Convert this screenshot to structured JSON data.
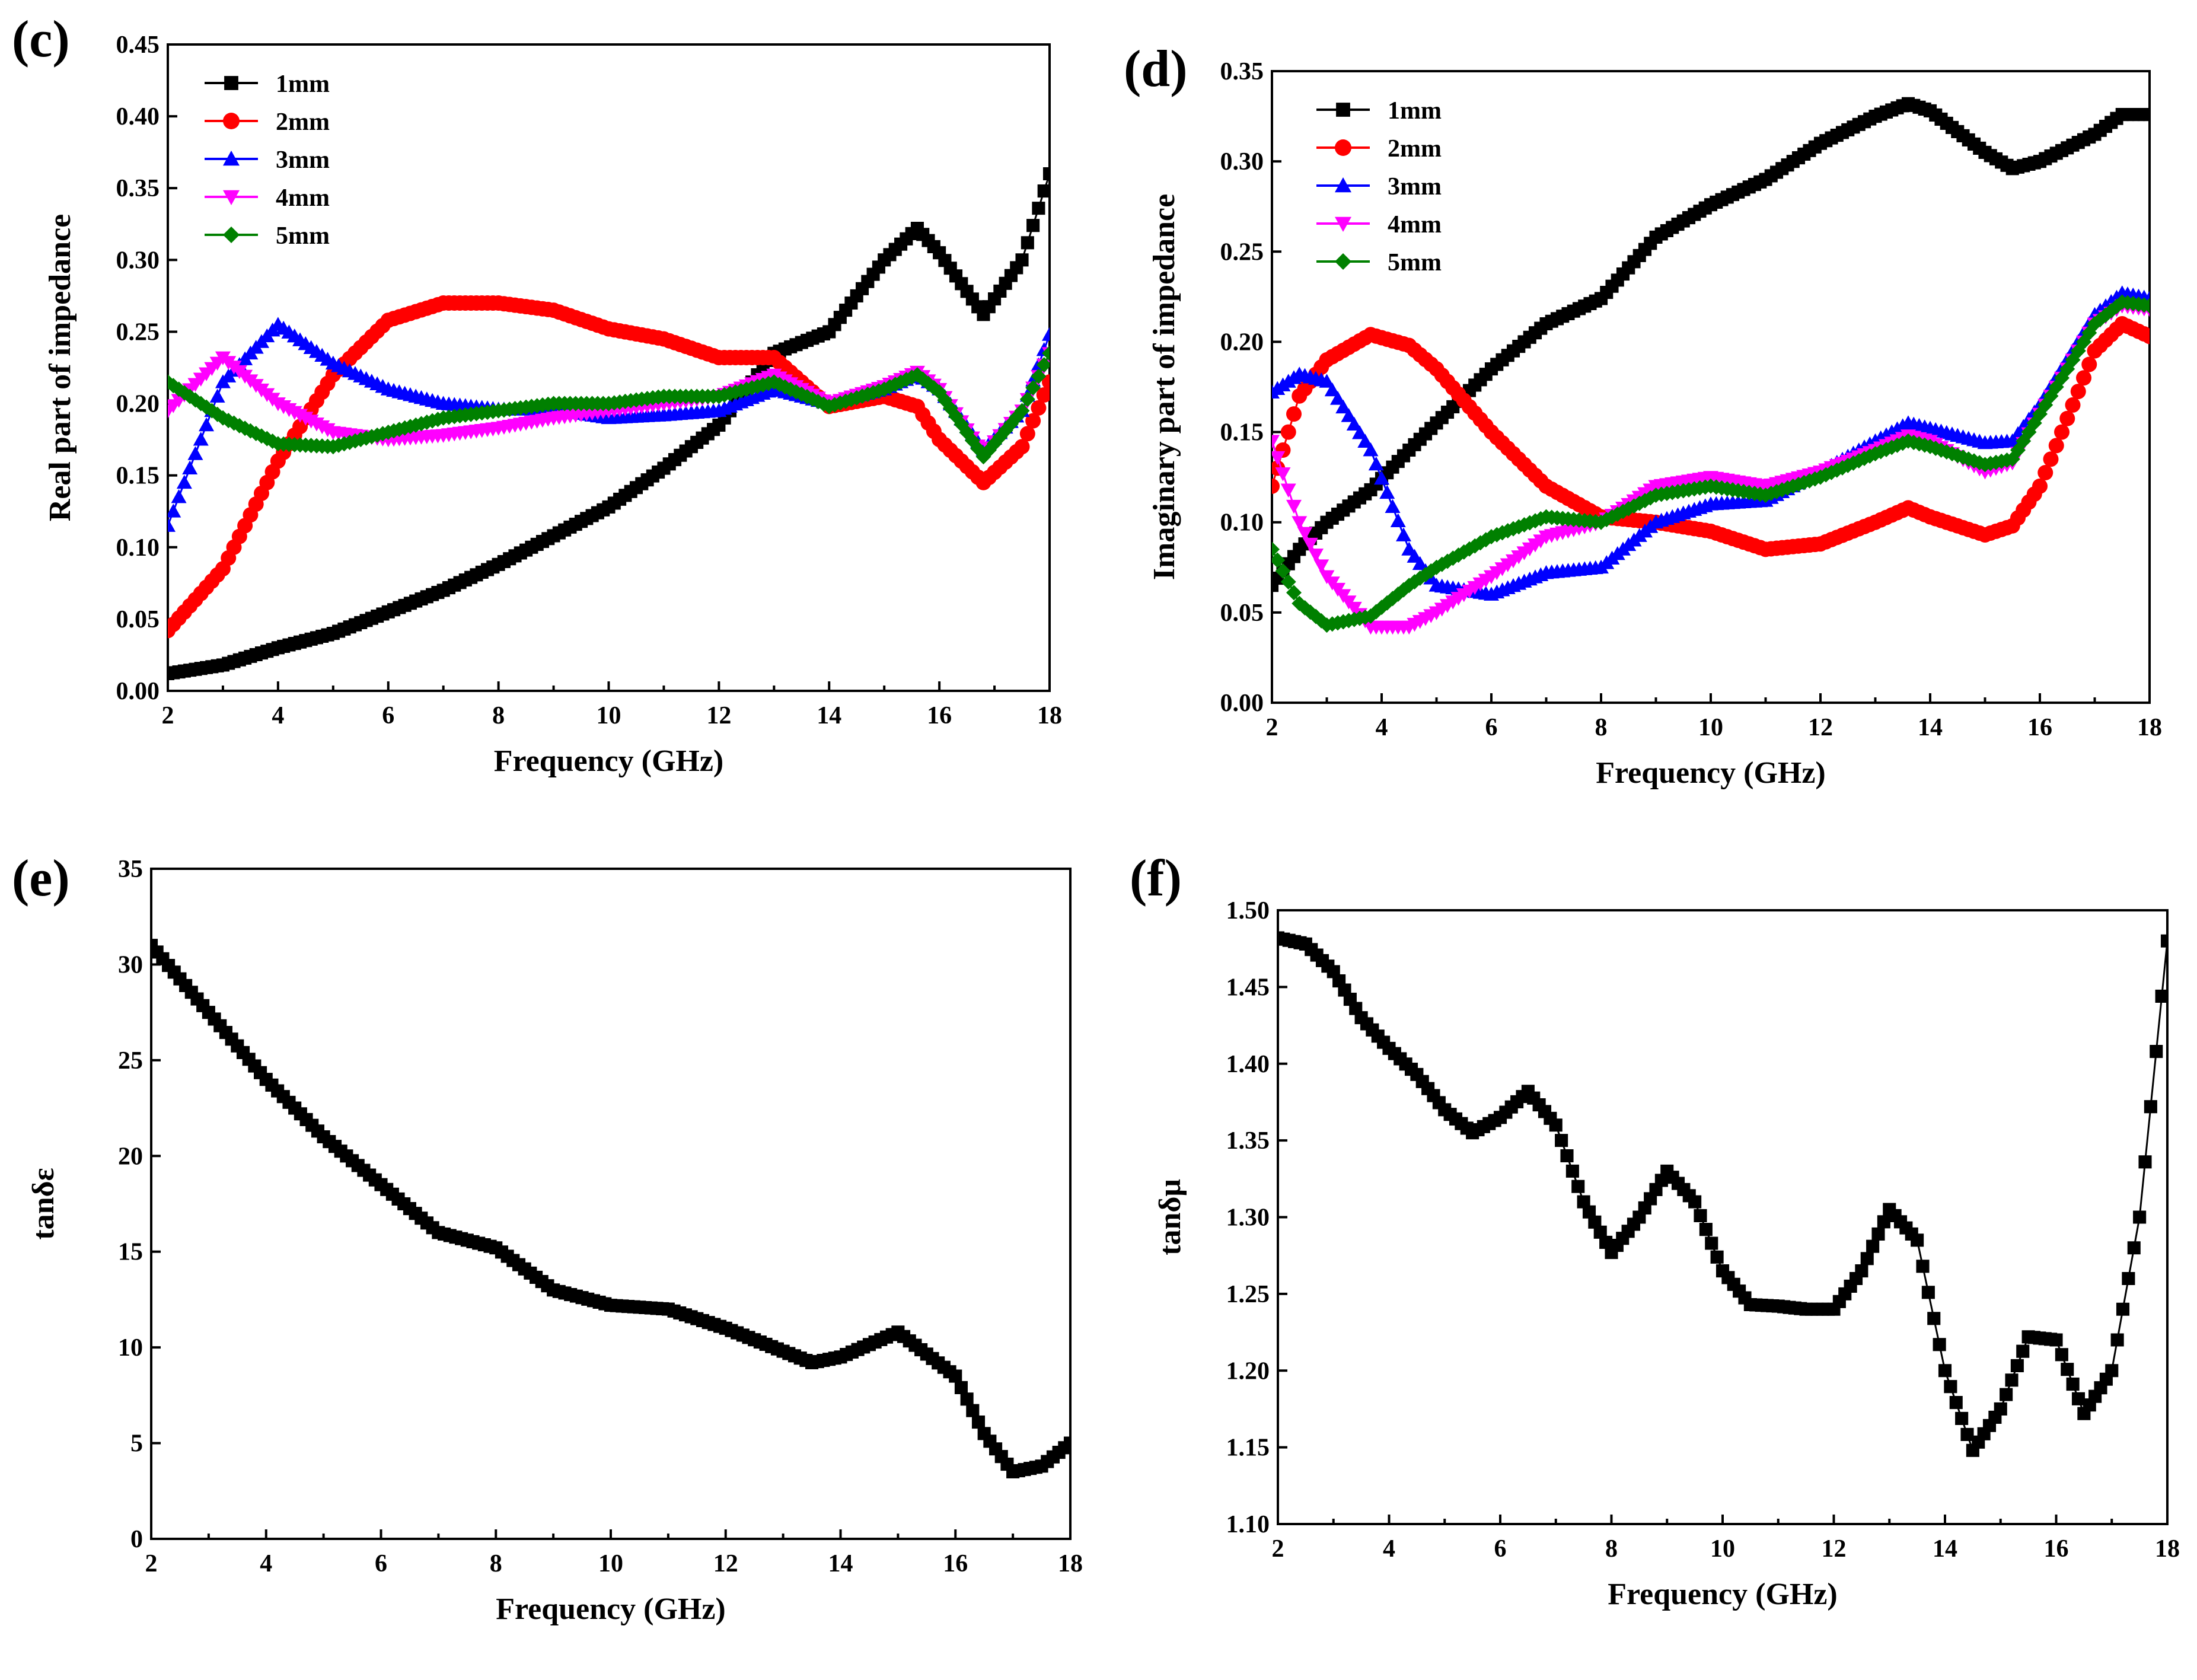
{
  "chart_data": [
    {
      "panel_label": "(c)",
      "type": "line",
      "xlabel": "Frequency (GHz)",
      "ylabel": "Real part of impedance",
      "xlim": [
        2,
        18
      ],
      "ylim": [
        0.0,
        0.45
      ],
      "xticks": [
        "2",
        "4",
        "6",
        "8",
        "10",
        "12",
        "14",
        "16",
        "18"
      ],
      "yticks": [
        "0.00",
        "0.05",
        "0.10",
        "0.15",
        "0.20",
        "0.25",
        "0.30",
        "0.35",
        "0.40",
        "0.45"
      ],
      "legend_position": "top-left",
      "x": [
        2,
        3,
        4,
        5,
        6,
        7,
        8,
        9,
        10,
        11,
        12,
        13,
        14,
        15,
        15.6,
        16,
        16.8,
        17.5,
        18
      ],
      "series": [
        {
          "name": "1mm",
          "color": "#000000",
          "marker": "square",
          "values": [
            0.012,
            0.018,
            0.03,
            0.04,
            0.055,
            0.07,
            0.088,
            0.108,
            0.128,
            0.155,
            0.185,
            0.235,
            0.25,
            0.3,
            0.322,
            0.305,
            0.262,
            0.3,
            0.36
          ]
        },
        {
          "name": "2mm",
          "color": "#ff0000",
          "marker": "circle",
          "values": [
            0.042,
            0.085,
            0.16,
            0.22,
            0.258,
            0.27,
            0.27,
            0.265,
            0.252,
            0.245,
            0.232,
            0.232,
            0.198,
            0.205,
            0.198,
            0.175,
            0.145,
            0.17,
            0.215
          ]
        },
        {
          "name": "3mm",
          "color": "#0000ff",
          "marker": "triangle-up",
          "values": [
            0.115,
            0.215,
            0.255,
            0.228,
            0.21,
            0.2,
            0.196,
            0.196,
            0.19,
            0.192,
            0.195,
            0.21,
            0.2,
            0.21,
            0.22,
            0.21,
            0.168,
            0.195,
            0.248
          ]
        },
        {
          "name": "4mm",
          "color": "#ff00ff",
          "marker": "triangle-down",
          "values": [
            0.195,
            0.232,
            0.2,
            0.18,
            0.175,
            0.178,
            0.183,
            0.19,
            0.195,
            0.2,
            0.205,
            0.22,
            0.2,
            0.212,
            0.222,
            0.21,
            0.165,
            0.195,
            0.235
          ]
        },
        {
          "name": "5mm",
          "color": "#008000",
          "marker": "diamond",
          "values": [
            0.215,
            0.19,
            0.172,
            0.17,
            0.18,
            0.19,
            0.195,
            0.2,
            0.2,
            0.205,
            0.205,
            0.215,
            0.198,
            0.21,
            0.22,
            0.208,
            0.163,
            0.195,
            0.235
          ]
        }
      ]
    },
    {
      "panel_label": "(d)",
      "type": "line",
      "xlabel": "Frequency (GHz)",
      "ylabel": "Imaginary part of impedance",
      "xlim": [
        2,
        18
      ],
      "ylim": [
        0.0,
        0.35
      ],
      "xticks": [
        "2",
        "4",
        "6",
        "8",
        "10",
        "12",
        "14",
        "16",
        "18"
      ],
      "yticks": [
        "0.00",
        "0.05",
        "0.10",
        "0.15",
        "0.20",
        "0.25",
        "0.30",
        "0.35"
      ],
      "legend_position": "top-left",
      "x": [
        2,
        2.5,
        3,
        3.8,
        4.5,
        5,
        6,
        7,
        8,
        9,
        10,
        11,
        12,
        13,
        13.6,
        14,
        15,
        15.5,
        16,
        17,
        17.5,
        18
      ],
      "series": [
        {
          "name": "1mm",
          "color": "#000000",
          "marker": "square",
          "values": [
            0.065,
            0.085,
            0.1,
            0.118,
            0.14,
            0.155,
            0.185,
            0.21,
            0.224,
            0.258,
            0.276,
            0.29,
            0.31,
            0.325,
            0.332,
            0.328,
            0.305,
            0.296,
            0.3,
            0.315,
            0.326,
            0.326
          ]
        },
        {
          "name": "2mm",
          "color": "#ff0000",
          "marker": "circle",
          "values": [
            0.12,
            0.17,
            0.19,
            0.204,
            0.198,
            0.185,
            0.15,
            0.12,
            0.103,
            0.1,
            0.095,
            0.085,
            0.088,
            0.1,
            0.108,
            0.103,
            0.093,
            0.098,
            0.12,
            0.195,
            0.21,
            0.203
          ]
        },
        {
          "name": "3mm",
          "color": "#0000ff",
          "marker": "triangle-up",
          "values": [
            0.172,
            0.182,
            0.178,
            0.14,
            0.085,
            0.065,
            0.06,
            0.072,
            0.075,
            0.1,
            0.11,
            0.112,
            0.128,
            0.145,
            0.155,
            0.152,
            0.144,
            0.145,
            0.165,
            0.215,
            0.227,
            0.224
          ]
        },
        {
          "name": "4mm",
          "color": "#ff00ff",
          "marker": "triangle-down",
          "values": [
            0.145,
            0.1,
            0.07,
            0.042,
            0.042,
            0.05,
            0.07,
            0.092,
            0.1,
            0.12,
            0.125,
            0.12,
            0.128,
            0.14,
            0.148,
            0.145,
            0.128,
            0.133,
            0.16,
            0.21,
            0.22,
            0.218
          ]
        },
        {
          "name": "5mm",
          "color": "#008000",
          "marker": "diamond",
          "values": [
            0.085,
            0.055,
            0.043,
            0.048,
            0.065,
            0.075,
            0.092,
            0.103,
            0.1,
            0.115,
            0.12,
            0.115,
            0.125,
            0.138,
            0.145,
            0.142,
            0.132,
            0.135,
            0.16,
            0.21,
            0.222,
            0.22
          ]
        }
      ]
    },
    {
      "panel_label": "(e)",
      "type": "line",
      "xlabel": "Frequency (GHz)",
      "ylabel": "tanδε",
      "xlim": [
        2,
        18
      ],
      "ylim": [
        0,
        35
      ],
      "xticks": [
        "2",
        "4",
        "6",
        "8",
        "10",
        "12",
        "14",
        "16",
        "18"
      ],
      "yticks": [
        "0",
        "5",
        "10",
        "15",
        "20",
        "25",
        "30",
        "35"
      ],
      "x": [
        2,
        3,
        4,
        5,
        6,
        7,
        8,
        9,
        10,
        11,
        12,
        13,
        13.5,
        14,
        15,
        16,
        16.5,
        17,
        17.5,
        18
      ],
      "series": [
        {
          "color": "#000000",
          "marker": "square",
          "values": [
            31,
            27.5,
            24,
            21,
            18.5,
            16,
            15.2,
            13,
            12.2,
            12,
            11,
            9.8,
            9.2,
            9.5,
            10.8,
            8.5,
            5.5,
            3.5,
            3.8,
            5
          ]
        }
      ]
    },
    {
      "panel_label": "(f)",
      "type": "line",
      "xlabel": "Frequency (GHz)",
      "ylabel": "tanδμ",
      "xlim": [
        2,
        18
      ],
      "ylim": [
        1.1,
        1.5
      ],
      "xticks": [
        "2",
        "4",
        "6",
        "8",
        "10",
        "12",
        "14",
        "16",
        "18"
      ],
      "yticks": [
        "1.10",
        "1.15",
        "1.20",
        "1.25",
        "1.30",
        "1.35",
        "1.40",
        "1.45",
        "1.50"
      ],
      "x": [
        2,
        2.5,
        3,
        3.5,
        4,
        4.5,
        5,
        5.5,
        6,
        6.5,
        7,
        7.5,
        8,
        8.5,
        9,
        9.5,
        10,
        10.5,
        11,
        11.5,
        12,
        12.5,
        13,
        13.5,
        14,
        14.5,
        15,
        15.5,
        16,
        16.5,
        17,
        17.5,
        18
      ],
      "series": [
        {
          "color": "#000000",
          "marker": "square",
          "values": [
            1.482,
            1.478,
            1.46,
            1.43,
            1.41,
            1.393,
            1.37,
            1.355,
            1.365,
            1.382,
            1.36,
            1.31,
            1.277,
            1.3,
            1.33,
            1.31,
            1.265,
            1.243,
            1.242,
            1.24,
            1.24,
            1.265,
            1.305,
            1.285,
            1.2,
            1.148,
            1.175,
            1.222,
            1.22,
            1.172,
            1.2,
            1.3,
            1.48
          ]
        }
      ]
    }
  ]
}
